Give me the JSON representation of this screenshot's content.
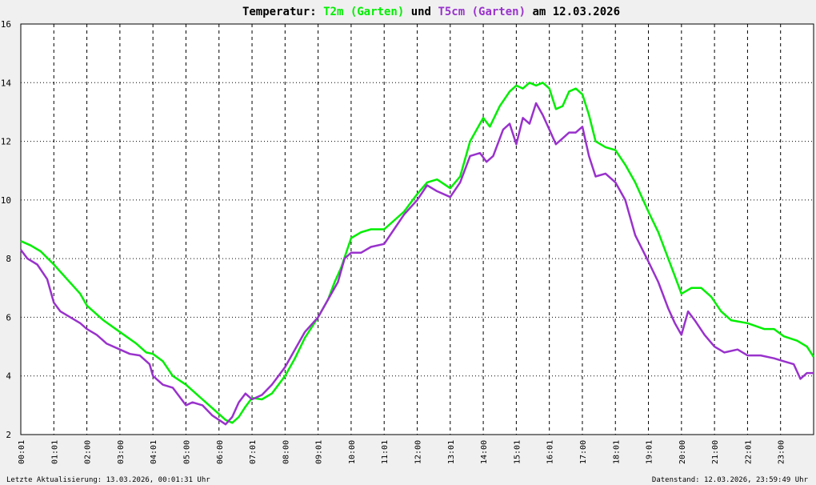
{
  "chart_data": {
    "type": "line",
    "title": {
      "prefix": "Temperatur:",
      "series1_label": "T2m (Garten)",
      "connector": "und",
      "series2_label": "T5cm (Garten)",
      "suffix": "am 12.03.2026"
    },
    "ylim": [
      2,
      16
    ],
    "yticks": [
      2,
      4,
      6,
      8,
      10,
      12,
      14,
      16
    ],
    "ytick_labels": [
      "2",
      "4",
      "6",
      "8",
      "10",
      "12",
      "14",
      "16"
    ],
    "xlim": [
      0,
      24
    ],
    "xtick_positions": [
      0,
      1,
      2,
      3,
      4,
      5,
      6,
      7,
      8,
      9,
      10,
      11,
      12,
      13,
      14,
      15,
      16,
      17,
      18,
      19,
      20,
      21,
      22,
      23
    ],
    "xtick_labels": [
      "00:01",
      "01:01",
      "02:00",
      "03:00",
      "04:01",
      "05:00",
      "06:00",
      "07:01",
      "08:00",
      "09:01",
      "10:00",
      "11:01",
      "12:00",
      "13:01",
      "14:00",
      "15:01",
      "16:01",
      "17:00",
      "18:01",
      "19:01",
      "20:00",
      "21:00",
      "22:01",
      "23:00"
    ],
    "grid": true,
    "series": [
      {
        "name": "T2m (Garten)",
        "color": "#00ee00",
        "x": [
          0,
          0.3,
          0.6,
          1.0,
          1.4,
          1.8,
          2.0,
          2.5,
          3.0,
          3.5,
          3.8,
          4.0,
          4.3,
          4.6,
          5.0,
          5.3,
          5.6,
          5.9,
          6.2,
          6.4,
          6.6,
          6.8,
          7.0,
          7.3,
          7.6,
          8.0,
          8.3,
          8.6,
          9.0,
          9.3,
          9.5,
          9.7,
          10.0,
          10.3,
          10.6,
          11.0,
          11.3,
          11.6,
          12.0,
          12.3,
          12.6,
          13.0,
          13.3,
          13.6,
          14.0,
          14.2,
          14.5,
          14.8,
          15.0,
          15.2,
          15.4,
          15.6,
          15.8,
          16.0,
          16.2,
          16.4,
          16.6,
          16.8,
          17.0,
          17.2,
          17.4,
          17.7,
          18.0,
          18.3,
          18.6,
          19.0,
          19.3,
          19.6,
          19.8,
          20.0,
          20.3,
          20.6,
          20.9,
          21.2,
          21.5,
          22.0,
          22.5,
          22.8,
          23.1,
          23.5,
          23.8,
          24.0
        ],
        "values": [
          8.6,
          8.45,
          8.25,
          7.8,
          7.3,
          6.8,
          6.4,
          5.9,
          5.5,
          5.1,
          4.8,
          4.75,
          4.5,
          4.0,
          3.7,
          3.4,
          3.1,
          2.8,
          2.5,
          2.4,
          2.6,
          2.95,
          3.25,
          3.2,
          3.4,
          4.0,
          4.6,
          5.3,
          6.0,
          6.6,
          7.2,
          7.7,
          8.7,
          8.9,
          9.0,
          9.0,
          9.3,
          9.6,
          10.2,
          10.6,
          10.7,
          10.4,
          10.8,
          12.0,
          12.8,
          12.5,
          13.2,
          13.7,
          13.9,
          13.8,
          14.0,
          13.9,
          14.0,
          13.8,
          13.1,
          13.2,
          13.7,
          13.8,
          13.6,
          12.9,
          12.0,
          11.8,
          11.7,
          11.2,
          10.6,
          9.6,
          8.9,
          8.0,
          7.4,
          6.8,
          7.0,
          7.0,
          6.7,
          6.2,
          5.9,
          5.8,
          5.6,
          5.6,
          5.35,
          5.2,
          5.0,
          4.65
        ]
      },
      {
        "name": "T5cm (Garten)",
        "color": "#9932cc",
        "x": [
          0,
          0.2,
          0.5,
          0.8,
          1.0,
          1.2,
          1.5,
          1.8,
          2.0,
          2.3,
          2.6,
          3.0,
          3.3,
          3.6,
          3.9,
          4.0,
          4.3,
          4.6,
          5.0,
          5.2,
          5.5,
          5.8,
          6.0,
          6.2,
          6.4,
          6.6,
          6.8,
          7.0,
          7.3,
          7.6,
          8.0,
          8.3,
          8.6,
          9.0,
          9.3,
          9.6,
          9.8,
          10.0,
          10.3,
          10.6,
          11.0,
          11.3,
          11.6,
          12.0,
          12.3,
          12.6,
          13.0,
          13.3,
          13.6,
          13.9,
          14.1,
          14.3,
          14.6,
          14.8,
          15.0,
          15.2,
          15.4,
          15.6,
          15.8,
          16.0,
          16.2,
          16.4,
          16.6,
          16.8,
          17.0,
          17.2,
          17.4,
          17.7,
          18.0,
          18.3,
          18.6,
          19.0,
          19.3,
          19.6,
          19.8,
          20.0,
          20.2,
          20.4,
          20.7,
          21.0,
          21.3,
          21.7,
          22.0,
          22.4,
          22.8,
          23.1,
          23.4,
          23.6,
          23.8,
          24.0
        ],
        "values": [
          8.3,
          8.0,
          7.8,
          7.3,
          6.5,
          6.2,
          6.0,
          5.8,
          5.6,
          5.4,
          5.1,
          4.9,
          4.75,
          4.7,
          4.4,
          4.0,
          3.7,
          3.6,
          3.0,
          3.1,
          3.0,
          2.65,
          2.5,
          2.35,
          2.6,
          3.1,
          3.4,
          3.2,
          3.35,
          3.7,
          4.3,
          4.9,
          5.5,
          6.0,
          6.6,
          7.2,
          8.0,
          8.2,
          8.2,
          8.4,
          8.5,
          9.0,
          9.5,
          10.0,
          10.5,
          10.3,
          10.1,
          10.6,
          11.5,
          11.6,
          11.3,
          11.5,
          12.4,
          12.6,
          11.9,
          12.8,
          12.6,
          13.3,
          12.9,
          12.4,
          11.9,
          12.1,
          12.3,
          12.3,
          12.5,
          11.5,
          10.8,
          10.9,
          10.6,
          10.0,
          8.8,
          7.9,
          7.2,
          6.3,
          5.8,
          5.4,
          6.2,
          5.9,
          5.4,
          5.0,
          4.8,
          4.9,
          4.7,
          4.7,
          4.6,
          4.5,
          4.4,
          3.9,
          4.1,
          4.1
        ]
      }
    ]
  },
  "footer": {
    "left": "Letzte Aktualisierung: 13.03.2026, 00:01:31 Uhr",
    "right": "Datenstand: 12.03.2026, 23:59:49 Uhr"
  },
  "colors": {
    "background": "#f0f0f0",
    "plot_background": "#ffffff",
    "grid": "#000000",
    "text": "#000000"
  }
}
